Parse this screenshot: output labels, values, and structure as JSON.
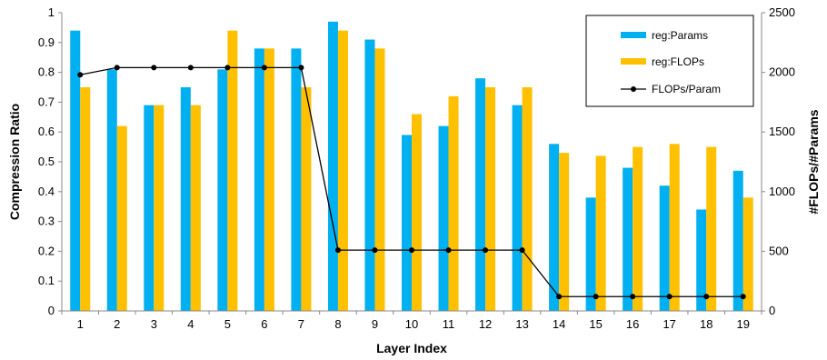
{
  "chart_data": {
    "type": "bar",
    "categories": [
      "1",
      "2",
      "3",
      "4",
      "5",
      "6",
      "7",
      "8",
      "9",
      "10",
      "11",
      "12",
      "13",
      "14",
      "15",
      "16",
      "17",
      "18",
      "19"
    ],
    "series": [
      {
        "name": "reg:Params",
        "axis": "left",
        "kind": "bar",
        "color": "#00B0F0",
        "values": [
          0.94,
          0.81,
          0.69,
          0.75,
          0.81,
          0.88,
          0.88,
          0.97,
          0.91,
          0.59,
          0.62,
          0.78,
          0.69,
          0.56,
          0.38,
          0.48,
          0.42,
          0.34,
          0.47
        ]
      },
      {
        "name": "reg:FLOPs",
        "axis": "left",
        "kind": "bar",
        "color": "#FFC000",
        "values": [
          0.75,
          0.62,
          0.69,
          0.69,
          0.94,
          0.88,
          0.75,
          0.94,
          0.88,
          0.66,
          0.72,
          0.75,
          0.75,
          0.53,
          0.52,
          0.55,
          0.56,
          0.55,
          0.38
        ]
      },
      {
        "name": "FLOPs/Param",
        "axis": "right",
        "kind": "line",
        "color": "#000000",
        "values": [
          1980,
          2040,
          2040,
          2040,
          2040,
          2040,
          2040,
          510,
          510,
          510,
          510,
          510,
          510,
          120,
          120,
          120,
          120,
          120,
          120
        ]
      }
    ],
    "xlabel": "Layer Index",
    "ylabel": "Compression Ratio",
    "y2label": "#FLOPs/#Params",
    "ylim": [
      0,
      1
    ],
    "y2lim": [
      0,
      2500
    ],
    "yticks": [
      "0",
      "0.1",
      "0.2",
      "0.3",
      "0.4",
      "0.5",
      "0.6",
      "0.7",
      "0.8",
      "0.9",
      "1"
    ],
    "y2ticks": [
      "0",
      "500",
      "1000",
      "1500",
      "2000",
      "2500"
    ],
    "legend_position": "top-right",
    "grid": false
  }
}
